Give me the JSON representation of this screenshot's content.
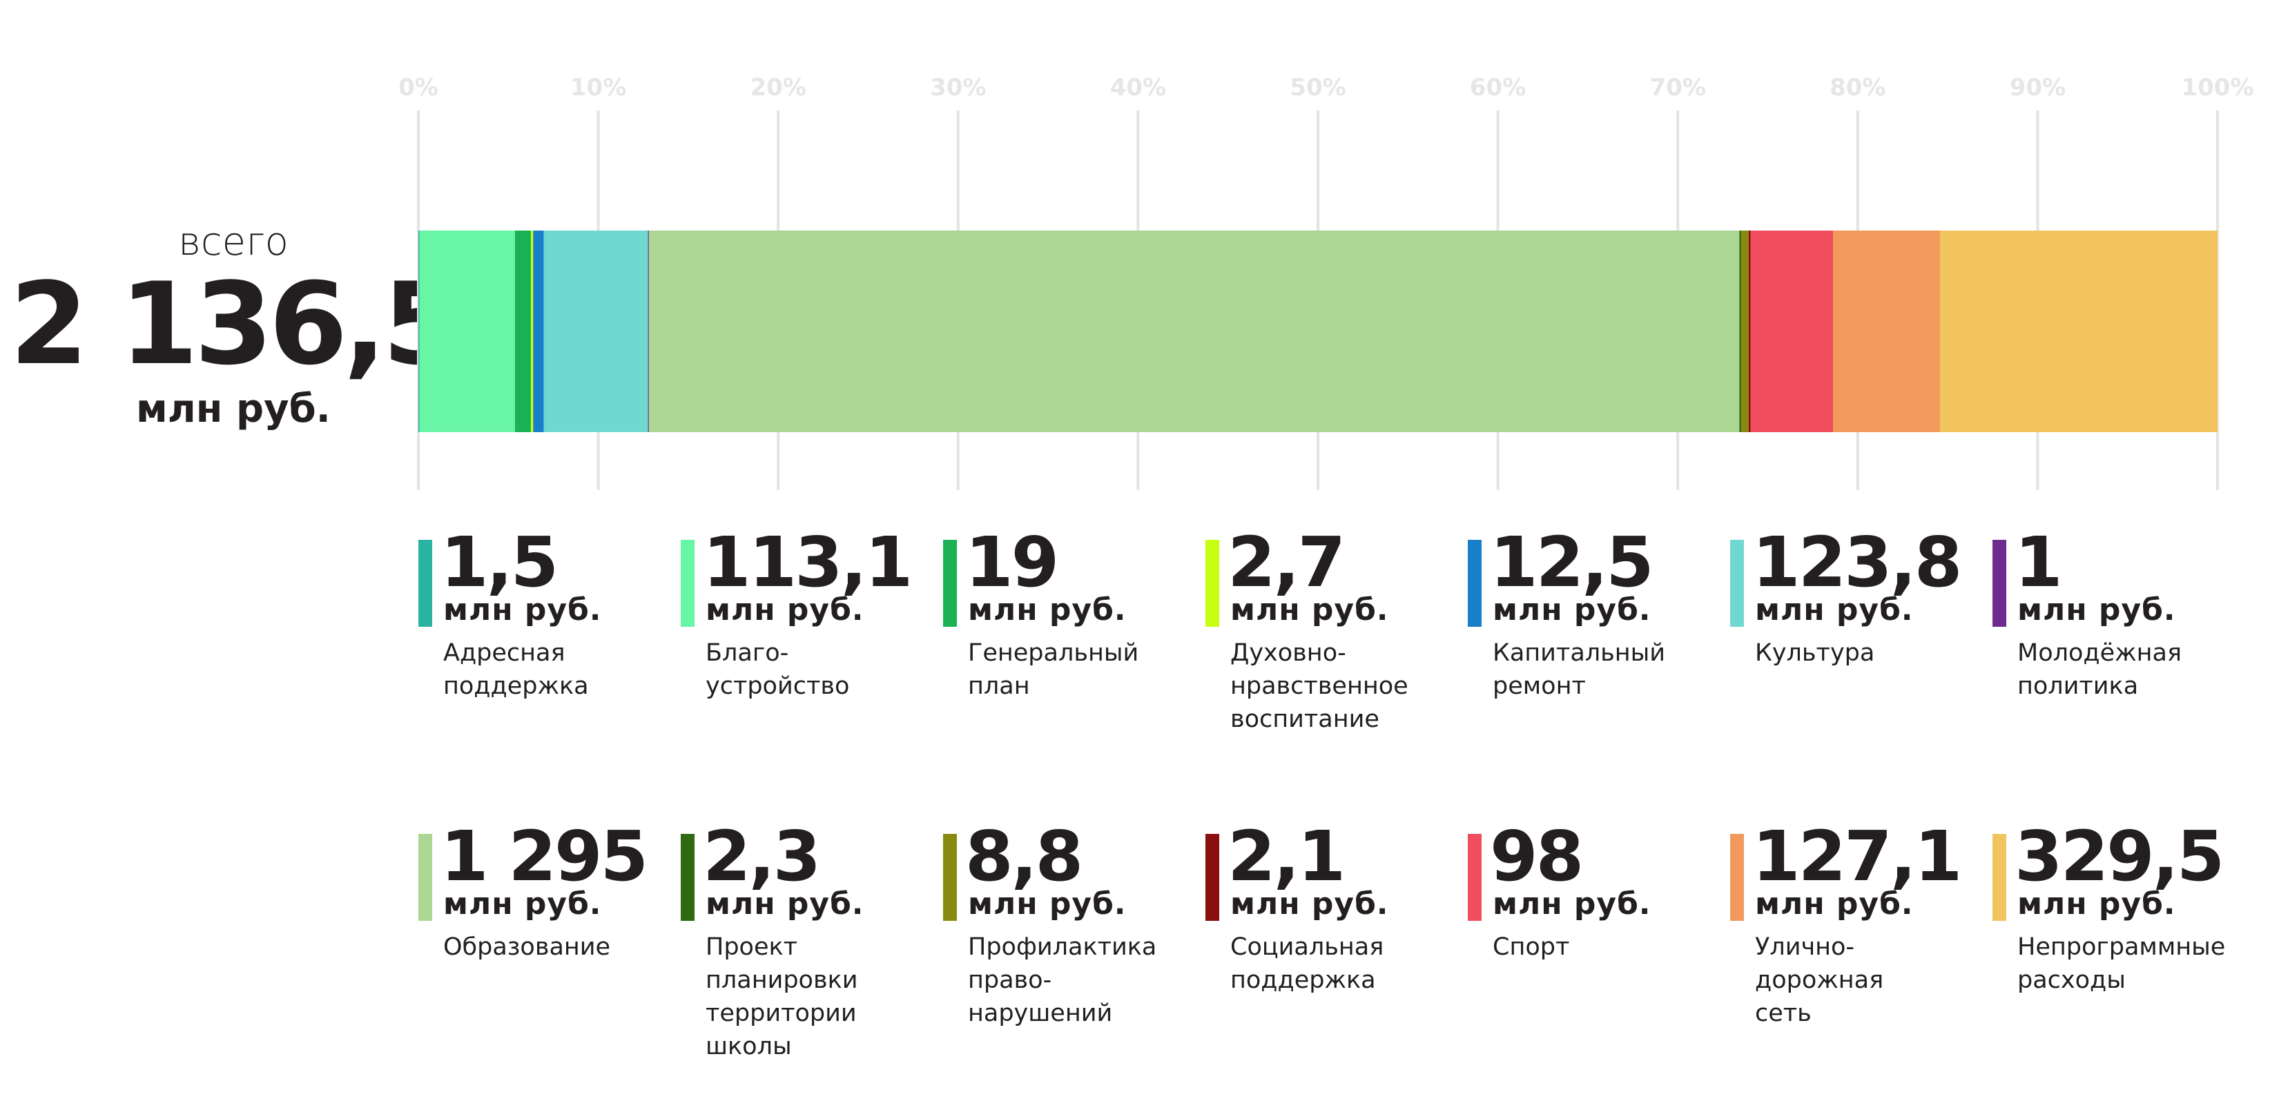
{
  "total": {
    "caption": "всего",
    "value": "2 136,5",
    "unit": "млн руб."
  },
  "chart_data": {
    "type": "bar",
    "orientation": "horizontal-stacked-100%",
    "x_ticks": [
      "0%",
      "10%",
      "20%",
      "30%",
      "40%",
      "50%",
      "60%",
      "70%",
      "80%",
      "90%",
      "100%"
    ],
    "xlim": [
      0,
      100
    ],
    "grid": true,
    "unit": "млн руб.",
    "series": [
      {
        "name": "Адресная поддержка",
        "value_label": "1,5",
        "value": 1.5,
        "color": "#2bb3a1"
      },
      {
        "name": "Благо-\nустройство",
        "value_label": "113,1",
        "value": 113.1,
        "color": "#69f5a6"
      },
      {
        "name": "Генеральный\nплан",
        "value_label": "19",
        "value": 19,
        "color": "#19b153"
      },
      {
        "name": "Духовно-\nнравственное\nвоспитание",
        "value_label": "2,7",
        "value": 2.7,
        "color": "#c6ff12"
      },
      {
        "name": "Капитальный\nремонт",
        "value_label": "12,5",
        "value": 12.5,
        "color": "#1a7fc9"
      },
      {
        "name": "Культура",
        "value_label": "123,8",
        "value": 123.8,
        "color": "#6fd9d1"
      },
      {
        "name": "Молодёжная\nполитика",
        "value_label": "1",
        "value": 1,
        "color": "#6f2b90"
      },
      {
        "name": "Образование",
        "value_label": "1 295",
        "value": 1295,
        "color": "#acd693"
      },
      {
        "name": "Проект\nпланировки\nтерритории\nшколы",
        "value_label": "2,3",
        "value": 2.3,
        "color": "#2f6a12"
      },
      {
        "name": "Профилактика\nправо-\nнарушений",
        "value_label": "8,8",
        "value": 8.8,
        "color": "#888a10"
      },
      {
        "name": "Социальная\nподдержка",
        "value_label": "2,1",
        "value": 2.1,
        "color": "#8a0f0f"
      },
      {
        "name": "Спорт",
        "value_label": "98",
        "value": 98,
        "color": "#f24d5e"
      },
      {
        "name": "Улично-\nдорожная\nсеть",
        "value_label": "127,1",
        "value": 127.1,
        "color": "#f29a5c"
      },
      {
        "name": "Непрограммные\nрасходы",
        "value_label": "329,5",
        "value": 329.5,
        "color": "#f2c45e"
      }
    ]
  }
}
